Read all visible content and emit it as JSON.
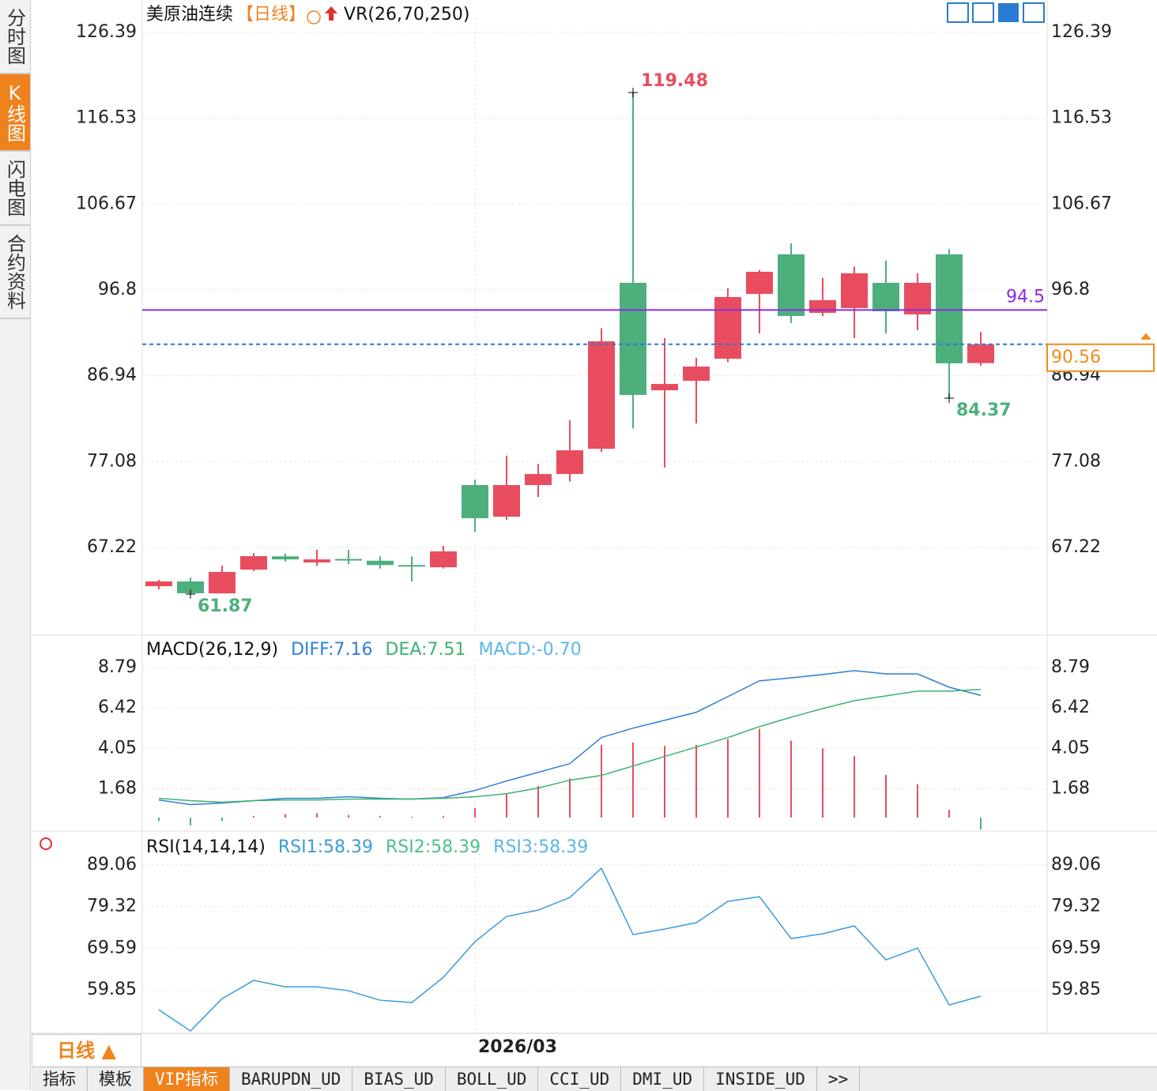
{
  "sidebar": [
    "分时图",
    "K线图",
    "闪电图",
    "合约资料"
  ],
  "chart_data": [
    {
      "type": "candlestick",
      "title": "美原油连续",
      "period": "【日线】",
      "indicator": "VR(26,70,250)",
      "categories": [
        null,
        null,
        null,
        null,
        null,
        null,
        null,
        null,
        null,
        null,
        "2026/03",
        null,
        null,
        null,
        null,
        null,
        null,
        null,
        null,
        null,
        null,
        null,
        null,
        null,
        null,
        null,
        null
      ],
      "open": [
        62.77,
        63.32,
        61.95,
        64.68,
        66.2,
        65.5,
        65.9,
        65.7,
        65.2,
        64.95,
        74.39,
        70.76,
        74.39,
        75.66,
        78.56,
        97.62,
        85.28,
        86.37,
        88.9,
        96.35,
        100.89,
        94.17,
        94.72,
        97.62,
        93.99,
        100.89,
        88.4
      ],
      "high": [
        63.5,
        63.77,
        65.13,
        66.58,
        66.5,
        66.95,
        66.95,
        66.2,
        66.2,
        67.4,
        75.0,
        77.75,
        76.8,
        81.83,
        92.4,
        119.48,
        91.27,
        89.0,
        97.0,
        99.1,
        102.16,
        98.17,
        99.5,
        100.16,
        98.7,
        101.5,
        91.99
      ],
      "low": [
        62.41,
        61.87,
        61.95,
        64.5,
        65.6,
        65.1,
        65.3,
        64.8,
        63.3,
        64.8,
        69.0,
        70.4,
        73.0,
        74.8,
        78.2,
        80.9,
        76.4,
        81.47,
        88.5,
        91.8,
        93.0,
        93.8,
        91.27,
        91.8,
        92.18,
        84.37,
        88.1
      ],
      "close": [
        63.32,
        61.96,
        64.41,
        66.22,
        65.85,
        65.85,
        65.8,
        65.2,
        65.1,
        66.77,
        70.58,
        74.39,
        75.66,
        78.38,
        90.9,
        84.74,
        86.0,
        88.0,
        95.99,
        98.89,
        93.81,
        95.63,
        98.71,
        94.35,
        97.62,
        88.37,
        90.56
      ],
      "up_color": "#e84d5f",
      "down_color": "#4daf7c",
      "high_marks": [
        119.48
      ],
      "low_marks": [
        61.87,
        84.37
      ],
      "hline": {
        "value": 94.5,
        "color": "#8a2be2"
      },
      "last_price": {
        "value": 90.56,
        "color": "#f08c1c"
      },
      "ylim": [
        57.51,
        128.11
      ],
      "yticks": [
        67.22,
        77.08,
        86.94,
        96.8,
        106.67,
        116.53,
        126.39
      ]
    },
    {
      "type": "macd",
      "title": "MACD(26,12,9)",
      "series": [
        {
          "name": "DIFF:7.16",
          "color": "#2f7fd8",
          "values": [
            1.03,
            0.76,
            0.85,
            0.99,
            1.13,
            1.13,
            1.22,
            1.13,
            1.08,
            1.17,
            1.59,
            2.14,
            2.65,
            3.16,
            4.69,
            5.24,
            5.7,
            6.17,
            7.09,
            8.01,
            8.19,
            8.38,
            8.61,
            8.42,
            8.42,
            7.64,
            7.16
          ]
        },
        {
          "name": "DEA:7.51",
          "color": "#3db36b",
          "values": [
            1.13,
            0.99,
            0.9,
            0.99,
            1.03,
            1.03,
            1.08,
            1.08,
            1.08,
            1.13,
            1.22,
            1.4,
            1.73,
            2.19,
            2.47,
            3.02,
            3.58,
            4.13,
            4.69,
            5.33,
            5.88,
            6.39,
            6.85,
            7.13,
            7.41,
            7.41,
            7.51
          ]
        }
      ],
      "histogram": {
        "name": "MACD:-0.70",
        "color": "#5bb7ea",
        "up_color": "#e84d5f",
        "down_color": "#4daf7c",
        "values": [
          -0.2,
          -0.46,
          -0.2,
          0.1,
          0.2,
          0.25,
          0.15,
          0.1,
          0.05,
          0.1,
          0.55,
          1.4,
          1.85,
          2.3,
          4.25,
          4.4,
          4.2,
          4.25,
          4.6,
          5.2,
          4.5,
          4.05,
          3.6,
          2.5,
          1.95,
          0.45,
          -0.7
        ]
      },
      "ylim": [
        -0.7,
        9.3
      ],
      "yticks": [
        1.68,
        4.05,
        6.42,
        8.79
      ]
    },
    {
      "type": "line",
      "title": "RSI(14,14,14)",
      "legend": [
        {
          "name": "RSI1:58.39",
          "color": "#3a9bdc"
        },
        {
          "name": "RSI2:58.39",
          "color": "#4cc08a"
        },
        {
          "name": "RSI3:58.39",
          "color": "#5bb7ea"
        }
      ],
      "values": [
        55.23,
        50.24,
        57.82,
        62.07,
        60.59,
        60.59,
        59.67,
        57.45,
        56.89,
        62.81,
        71.13,
        77.04,
        78.52,
        81.48,
        88.32,
        72.79,
        74.09,
        75.57,
        80.56,
        81.67,
        71.87,
        72.98,
        74.83,
        66.88,
        69.65,
        56.34,
        58.39
      ],
      "color": "#3a9bdc",
      "ylim": [
        49.7,
        90.91
      ],
      "yticks": [
        59.85,
        69.59,
        79.32,
        89.06
      ]
    }
  ],
  "toolbar": {
    "period_button": "日线 ▲",
    "tabs": [
      "指标",
      "模板",
      "VIP指标",
      "BARUPDN_UD",
      "BIAS_UD",
      "BOLL_UD",
      "CCI_UD",
      "DMI_UD",
      "INSIDE_UD",
      ">>"
    ]
  }
}
